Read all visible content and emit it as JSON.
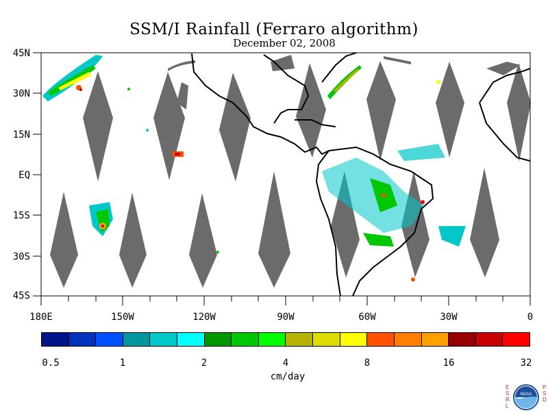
{
  "title": "SSM/I Rainfall (Ferraro algorithm)",
  "subtitle": "December 02, 2008",
  "lat_labels": [
    "45N",
    "30N",
    "15N",
    "EQ",
    "15S",
    "30S",
    "45S"
  ],
  "lon_labels": [
    "180E",
    "150W",
    "120W",
    "90W",
    "60W",
    "30W",
    "0"
  ],
  "colorbar": {
    "colors": [
      "#001487",
      "#0032be",
      "#0050ff",
      "#00969b",
      "#00c8c8",
      "#00ffff",
      "#009600",
      "#00c800",
      "#00ff00",
      "#b4b400",
      "#dcdc00",
      "#ffff00",
      "#ff5000",
      "#ff7d00",
      "#ffa000",
      "#960000",
      "#c80000",
      "#ff0000"
    ],
    "tick_labels": [
      "0.5",
      "1",
      "2",
      "4",
      "8",
      "16",
      "32"
    ],
    "units": "cm/day"
  },
  "logo": {
    "text": "NOAA",
    "left_letters": [
      "E",
      "S",
      "R",
      "L"
    ],
    "right_letters": [
      "P",
      "S",
      "D"
    ]
  }
}
